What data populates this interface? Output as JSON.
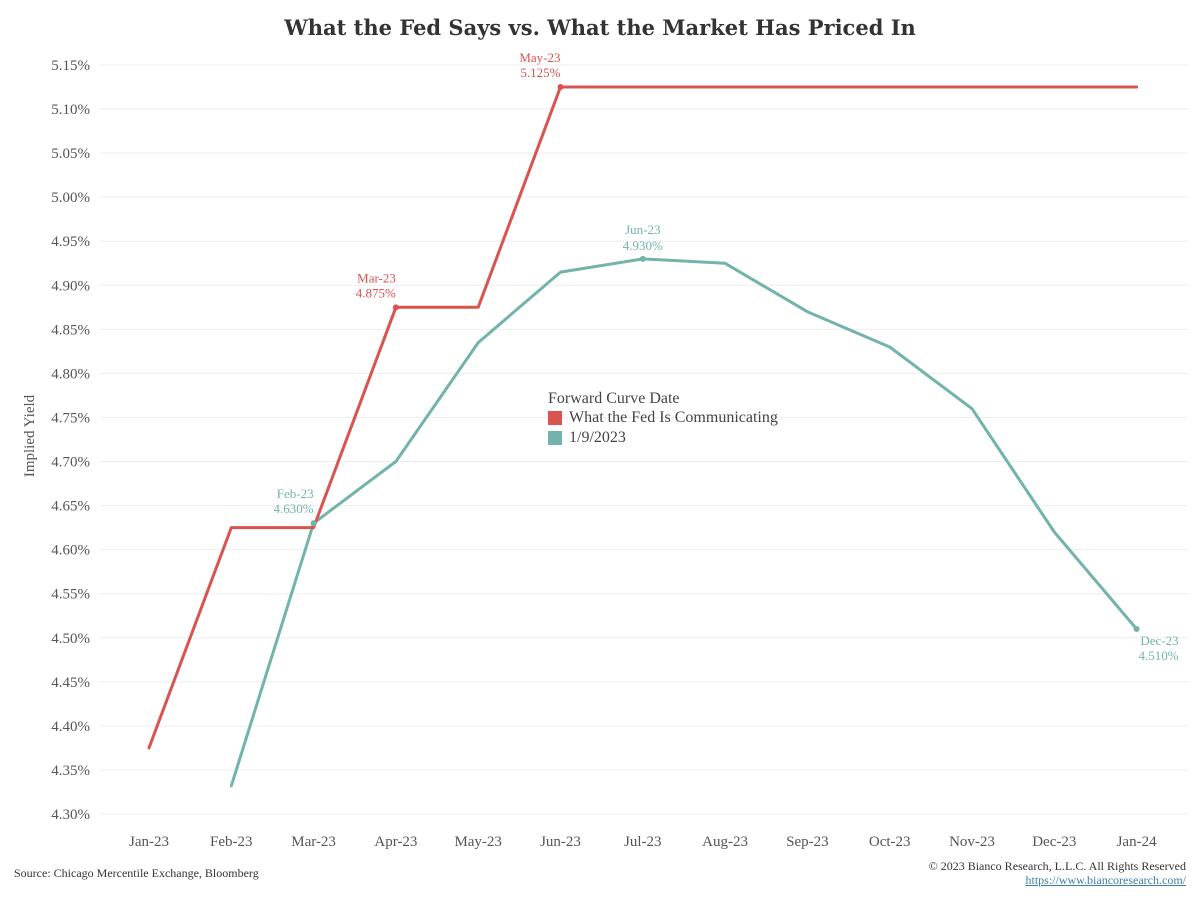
{
  "chart_data": {
    "type": "line",
    "title": "What the Fed Says vs. What the Market Has Priced In",
    "ylabel": "Implied Yield",
    "xlabel": "",
    "ylim": [
      4.3,
      5.15
    ],
    "ytick_values": [
      4.3,
      4.35,
      4.4,
      4.45,
      4.5,
      4.55,
      4.6,
      4.65,
      4.7,
      4.75,
      4.8,
      4.85,
      4.9,
      4.95,
      5.0,
      5.05,
      5.1,
      5.15
    ],
    "ytick_labels": [
      "4.30%",
      "4.35%",
      "4.40%",
      "4.45%",
      "4.50%",
      "4.55%",
      "4.60%",
      "4.65%",
      "4.70%",
      "4.75%",
      "4.80%",
      "4.85%",
      "4.90%",
      "4.95%",
      "5.00%",
      "5.05%",
      "5.10%",
      "5.15%"
    ],
    "categories": [
      "Jan-23",
      "Feb-23",
      "Mar-23",
      "Apr-23",
      "May-23",
      "Jun-23",
      "Jul-23",
      "Aug-23",
      "Sep-23",
      "Oct-23",
      "Nov-23",
      "Dec-23",
      "Jan-24"
    ],
    "series": [
      {
        "name": "What the Fed Is Communicating",
        "color": "#d9534f",
        "points": [
          [
            0,
            4.375
          ],
          [
            1,
            4.625
          ],
          [
            2,
            4.625
          ],
          [
            3,
            4.875
          ],
          [
            4,
            4.875
          ],
          [
            5,
            5.125
          ],
          [
            12,
            5.125
          ]
        ]
      },
      {
        "name": "1/9/2023",
        "color": "#72b3ab",
        "points": [
          [
            1,
            4.332
          ],
          [
            2,
            4.63
          ],
          [
            3,
            4.7
          ],
          [
            4,
            4.835
          ],
          [
            5,
            4.915
          ],
          [
            6,
            4.93
          ],
          [
            7,
            4.925
          ],
          [
            8,
            4.87
          ],
          [
            9,
            4.83
          ],
          [
            10,
            4.76
          ],
          [
            11,
            4.62
          ],
          [
            12,
            4.51
          ]
        ]
      }
    ],
    "annotations": [
      {
        "series": 0,
        "x": 3,
        "y": 4.875,
        "line1": "Mar-23",
        "line2": "4.875%",
        "anchor": "end"
      },
      {
        "series": 0,
        "x": 5,
        "y": 5.125,
        "line1": "May-23",
        "line2": "5.125%",
        "anchor": "end"
      },
      {
        "series": 1,
        "x": 2,
        "y": 4.63,
        "line1": "Feb-23",
        "line2": "4.630%",
        "anchor": "end"
      },
      {
        "series": 1,
        "x": 6,
        "y": 4.93,
        "line1": "Jun-23",
        "line2": "4.930%",
        "anchor": "middle"
      },
      {
        "series": 1,
        "x": 12,
        "y": 4.51,
        "line1": "Dec-23",
        "line2": "4.510%",
        "anchor": "below"
      }
    ],
    "legend_title": "Forward Curve Date",
    "legend_position": "center"
  },
  "footer": {
    "source": "Source: Chicago Mercentile Exchange, Bloomberg",
    "copyright": "© 2023 Bianco Research, L.L.C. All Rights Reserved",
    "url": "https://www.biancoresearch.com/"
  }
}
